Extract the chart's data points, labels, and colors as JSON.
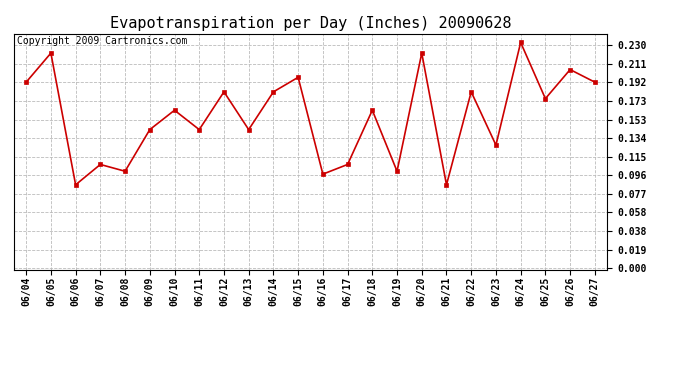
{
  "title": "Evapotranspiration per Day (Inches) 20090628",
  "copyright_text": "Copyright 2009 Cartronics.com",
  "dates": [
    "06/04",
    "06/05",
    "06/06",
    "06/07",
    "06/08",
    "06/09",
    "06/10",
    "06/11",
    "06/12",
    "06/13",
    "06/14",
    "06/15",
    "06/16",
    "06/17",
    "06/18",
    "06/19",
    "06/20",
    "06/21",
    "06/22",
    "06/23",
    "06/24",
    "06/25",
    "06/26",
    "06/27"
  ],
  "values": [
    0.192,
    0.222,
    0.086,
    0.107,
    0.1,
    0.143,
    0.163,
    0.143,
    0.182,
    0.143,
    0.182,
    0.197,
    0.097,
    0.107,
    0.163,
    0.1,
    0.222,
    0.086,
    0.182,
    0.127,
    0.233,
    0.175,
    0.205,
    0.192
  ],
  "line_color": "#cc0000",
  "marker": "s",
  "marker_size": 3,
  "background_color": "#ffffff",
  "grid_color": "#bbbbbb",
  "yticks": [
    0.0,
    0.019,
    0.038,
    0.058,
    0.077,
    0.096,
    0.115,
    0.134,
    0.153,
    0.173,
    0.192,
    0.211,
    0.23
  ],
  "ylim": [
    -0.002,
    0.242
  ],
  "title_fontsize": 11,
  "tick_fontsize": 7,
  "copyright_fontsize": 7
}
